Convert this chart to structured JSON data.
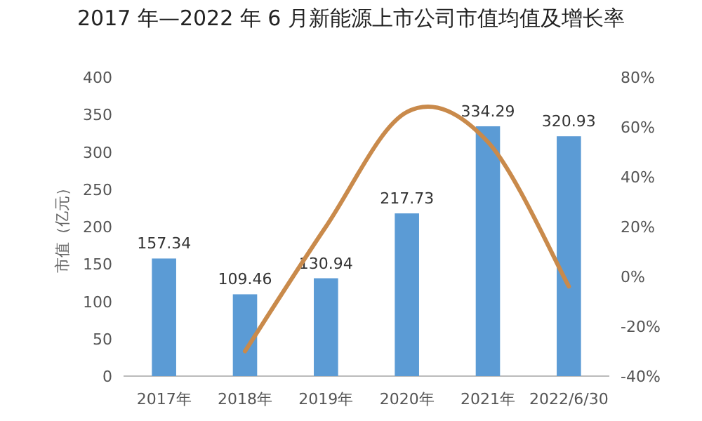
{
  "chart_data": {
    "type": "bar",
    "title": "2017 年—2022 年 6 月新能源上市公司市值均值及增长率",
    "ylabel": "市值（亿元）",
    "categories": [
      "2017年",
      "2018年",
      "2019年",
      "2020年",
      "2021年",
      "2022/6/30"
    ],
    "series": [
      {
        "color": "#5b9bd5",
        "values": [
          157.34,
          109.46,
          130.94,
          217.73,
          334.29,
          320.93
        ],
        "value_labels": [
          "157.34",
          "109.46",
          "130.94",
          "217.73",
          "334.29",
          "320.93"
        ]
      },
      {
        "type": "line",
        "axis": "y2",
        "color": "#c98a4b",
        "marker": "none",
        "values": [
          null,
          -30,
          20,
          66,
          54,
          -4
        ]
      }
    ],
    "ylim": [
      0,
      400
    ],
    "yticks": [
      0,
      50,
      100,
      150,
      200,
      250,
      300,
      350,
      400
    ],
    "y2lim": [
      -40,
      80
    ],
    "y2ticks": [
      {
        "value": -40,
        "label": "-40%"
      },
      {
        "value": -20,
        "label": "-20%"
      },
      {
        "value": 0,
        "label": "0%"
      },
      {
        "value": 20,
        "label": "20%"
      },
      {
        "value": 40,
        "label": "40%"
      },
      {
        "value": 60,
        "label": "60%"
      },
      {
        "value": 80,
        "label": "80%"
      }
    ],
    "grid": false
  }
}
